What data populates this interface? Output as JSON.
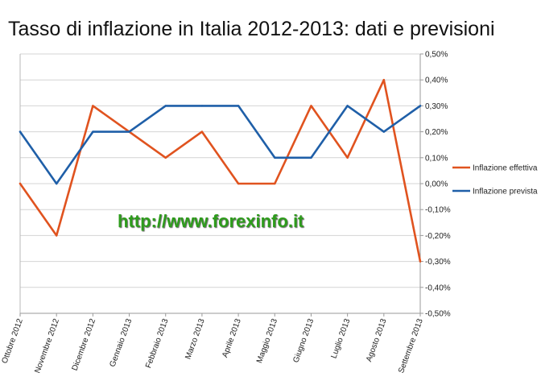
{
  "chart_data": {
    "type": "line",
    "title": "Tasso di inflazione in Italia 2012-2013: dati e previsioni",
    "categories": [
      "Ottobre 2012",
      "Novembre 2012",
      "Dicembre 2012",
      "Gennaio 2013",
      "Febbraio 2013",
      "Marzo 2013",
      "Aprile 2013",
      "Maggio 2013",
      "Giugno 2013",
      "Luglio 2013",
      "Agosto 2013",
      "Settembre 2013"
    ],
    "y_ticks": [
      "0,50%",
      "0,40%",
      "0,30%",
      "0,20%",
      "0,10%",
      "0,00%",
      "-0,10%",
      "-0,20%",
      "-0,30%",
      "-0,40%",
      "-0,50%"
    ],
    "ylim": [
      -0.5,
      0.5
    ],
    "y_unit": "%",
    "grid": "horizontal",
    "legend_position": "right",
    "series": [
      {
        "name": "Inflazione effettiva",
        "color": "#e0531f",
        "values": [
          0.0,
          -0.2,
          0.3,
          0.2,
          0.1,
          0.2,
          0.0,
          0.0,
          0.3,
          0.1,
          0.4,
          -0.3
        ]
      },
      {
        "name": "Inflazione prevista",
        "color": "#1f5fa8",
        "values": [
          0.2,
          0.0,
          0.2,
          0.2,
          0.3,
          0.3,
          0.3,
          0.1,
          0.1,
          0.3,
          0.2,
          0.3
        ]
      }
    ]
  },
  "watermark": "http://www.forexinfo.it"
}
